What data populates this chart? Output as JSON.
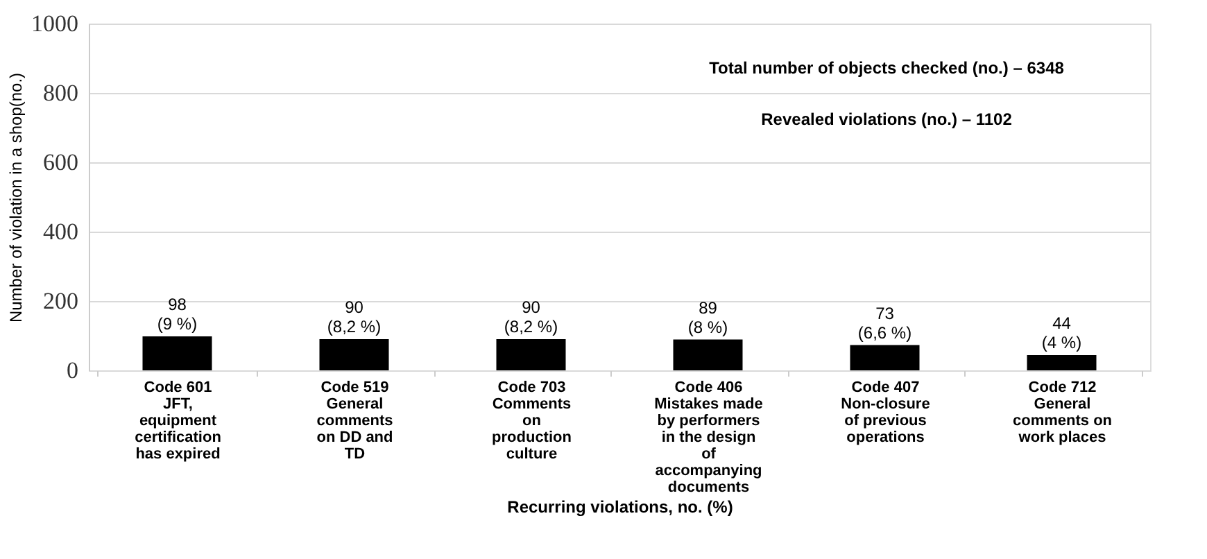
{
  "chart_data": {
    "type": "bar",
    "xlabel": "Recurring violations, no. (%)",
    "ylabel": "Number of violation in a shop(no.)",
    "categories": [
      "Code 601\nJFT,\nequipment\ncertification\nhas expired",
      "Code 519\nGeneral\ncomments\non DD and\nTD",
      "Code 703\nComments\non\nproduction\nculture",
      "Code 406\nMistakes made\nby performers\nin the design\nof\naccompanying\ndocuments",
      "Code 407\nNon-closure\nof previous\noperations",
      "Code 712\nGeneral\ncomments on\nwork places"
    ],
    "values": [
      98,
      90,
      90,
      89,
      73,
      44
    ],
    "value_labels": [
      "98\n(9 %)",
      "90\n(8,2 %)",
      "90\n(8,2 %)",
      "89\n(8 %)",
      "73\n(6,6 %)",
      "44\n(4 %)"
    ],
    "color": "#000000",
    "ylim": [
      0,
      1000
    ],
    "yticks": [
      0,
      200,
      400,
      600,
      800,
      1000
    ],
    "grid": "y",
    "annotations": [
      "Total number of objects checked (no.) – 6348",
      "Revealed violations (no.) – 1102"
    ]
  }
}
